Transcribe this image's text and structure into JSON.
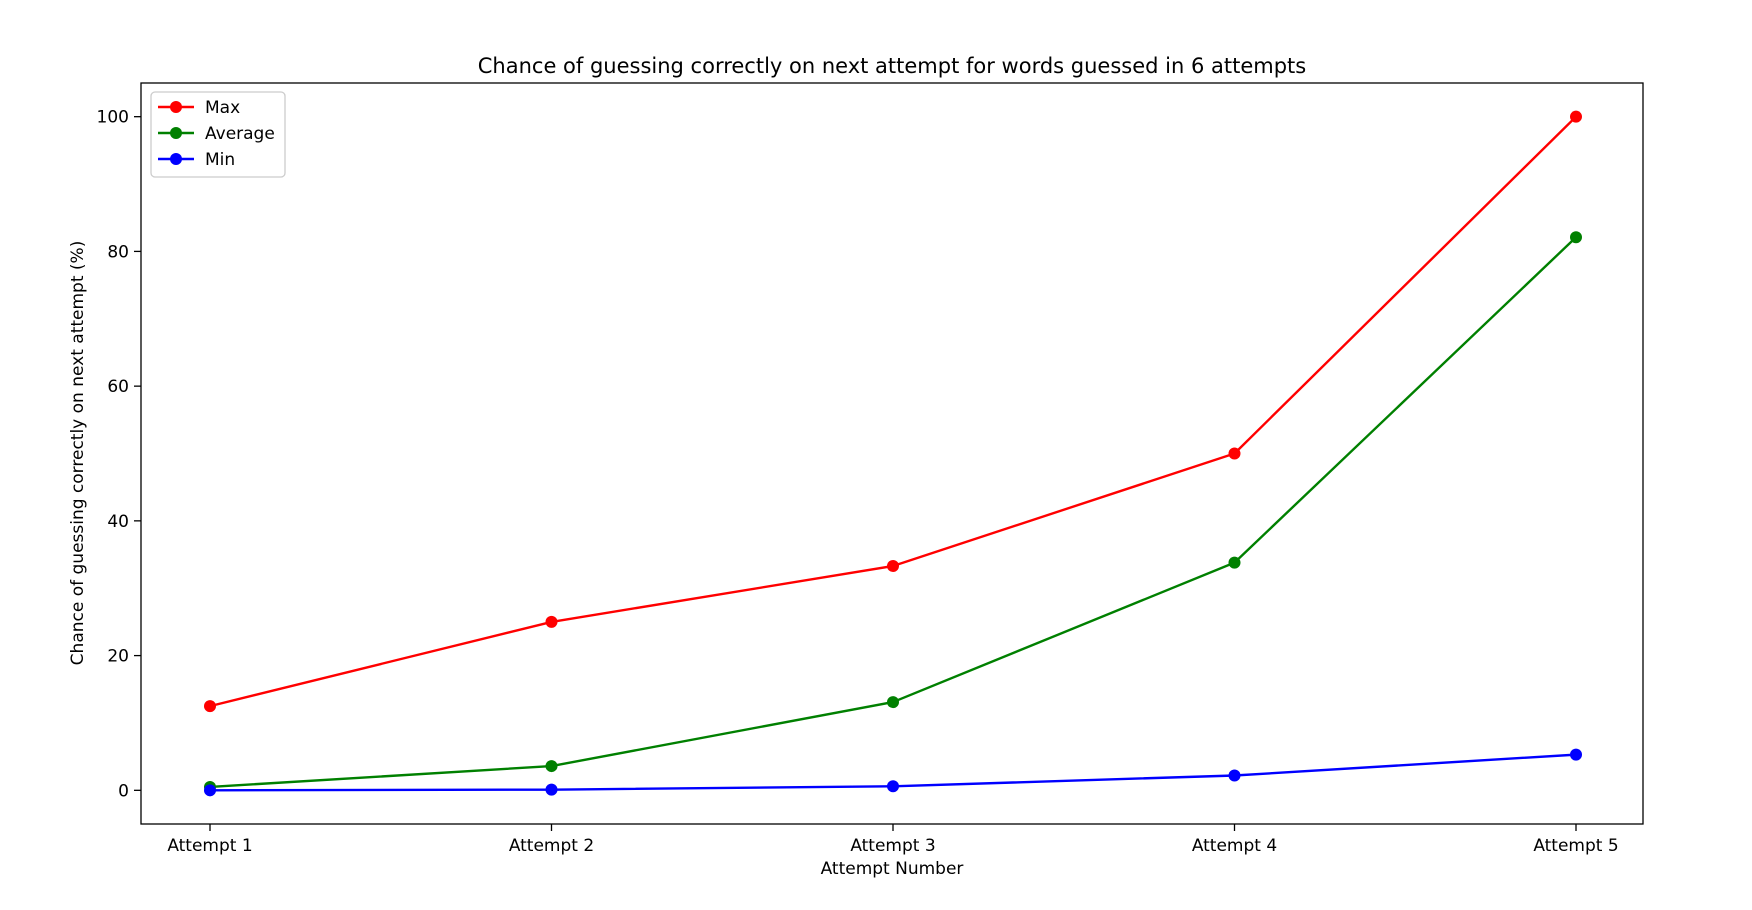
{
  "chart_data": {
    "type": "line",
    "title": "Chance of guessing correctly on next attempt for words guessed in 6 attempts",
    "xlabel": "Attempt Number",
    "ylabel": "Chance of guessing correctly on next attempt (%)",
    "categories": [
      "Attempt 1",
      "Attempt 2",
      "Attempt 3",
      "Attempt 4",
      "Attempt 5"
    ],
    "ylim": [
      -5,
      105
    ],
    "yticks": [
      0,
      20,
      40,
      60,
      80,
      100
    ],
    "grid": false,
    "legend_position": "top-left",
    "series": [
      {
        "name": "Max",
        "color": "#ff0000",
        "values": [
          12.5,
          25.0,
          33.3,
          50.0,
          100.0
        ]
      },
      {
        "name": "Average",
        "color": "#008000",
        "values": [
          0.5,
          3.6,
          13.1,
          33.8,
          82.1
        ]
      },
      {
        "name": "Min",
        "color": "#0000ff",
        "values": [
          0.0,
          0.1,
          0.6,
          2.2,
          5.3
        ]
      }
    ]
  }
}
